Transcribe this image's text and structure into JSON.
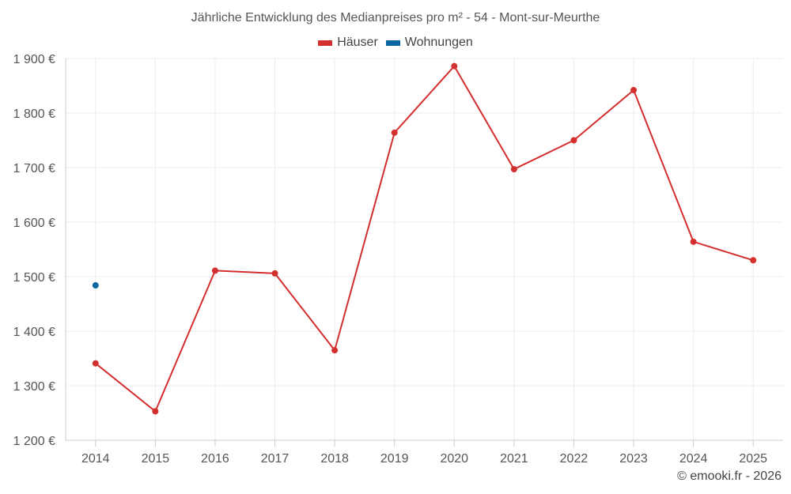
{
  "chart_data": {
    "type": "line",
    "title": "Jährliche Entwicklung des Medianpreises pro m² - 54 - Mont-sur-Meurthe",
    "categories": [
      "2014",
      "2015",
      "2016",
      "2017",
      "2018",
      "2019",
      "2020",
      "2021",
      "2022",
      "2023",
      "2024",
      "2025"
    ],
    "ylim": [
      1200,
      1900
    ],
    "yticks": [
      1200,
      1300,
      1400,
      1500,
      1600,
      1700,
      1800,
      1900
    ],
    "ytick_labels": [
      "1 200 €",
      "1 300 €",
      "1 400 €",
      "1 500 €",
      "1 600 €",
      "1 700 €",
      "1 800 €",
      "1 900 €"
    ],
    "grid": true,
    "legend_position": "top-center",
    "series": [
      {
        "name": "Häuser",
        "color": "#d32f2f",
        "values": [
          1341,
          1253,
          1511,
          1506,
          1365,
          1764,
          1886,
          1697,
          1750,
          1842,
          1564,
          1530
        ]
      },
      {
        "name": "Wohnungen",
        "color": "#0a66a0",
        "values": [
          1484,
          null,
          null,
          null,
          null,
          null,
          null,
          null,
          null,
          null,
          null,
          null
        ]
      }
    ]
  },
  "credit": "© emooki.fr - 2026"
}
